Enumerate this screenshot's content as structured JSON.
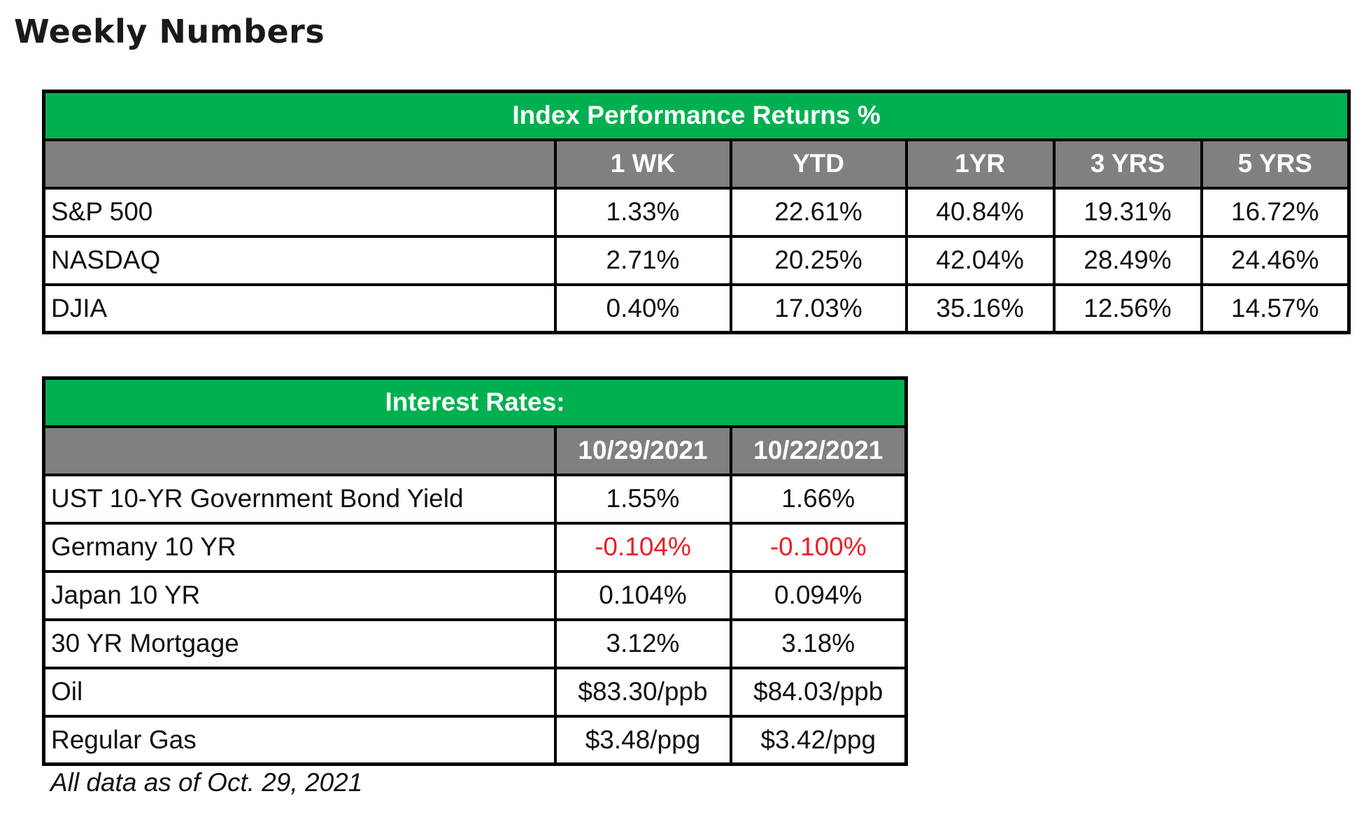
{
  "page": {
    "title": "Weekly Numbers",
    "footnote": "All data as of Oct. 29, 2021"
  },
  "colors": {
    "title_bar": "#00b050",
    "header_bar": "#808080",
    "negative": "#ee1c25",
    "text": "#111111"
  },
  "index_table": {
    "title": "Index Performance Returns %",
    "columns": [
      "",
      "1 WK",
      "YTD",
      "1YR",
      "3 YRS",
      "5 YRS"
    ],
    "rows": [
      {
        "label": "S&P 500",
        "values": [
          "1.33%",
          "22.61%",
          "40.84%",
          "19.31%",
          "16.72%"
        ]
      },
      {
        "label": "NASDAQ",
        "values": [
          "2.71%",
          "20.25%",
          "42.04%",
          "28.49%",
          "24.46%"
        ]
      },
      {
        "label": "DJIA",
        "values": [
          "0.40%",
          "17.03%",
          "35.16%",
          "12.56%",
          "14.57%"
        ]
      }
    ]
  },
  "rates_table": {
    "title": "Interest Rates:",
    "columns": [
      "",
      "10/29/2021",
      "10/22/2021"
    ],
    "rows": [
      {
        "label": "UST 10-YR Government Bond Yield",
        "values": [
          "1.55%",
          "1.66%"
        ],
        "negative": [
          false,
          false
        ]
      },
      {
        "label": "Germany 10 YR",
        "values": [
          "-0.104%",
          "-0.100%"
        ],
        "negative": [
          true,
          true
        ]
      },
      {
        "label": "Japan 10 YR",
        "values": [
          "0.104%",
          "0.094%"
        ],
        "negative": [
          false,
          false
        ]
      },
      {
        "label": "30 YR Mortgage",
        "values": [
          "3.12%",
          "3.18%"
        ],
        "negative": [
          false,
          false
        ]
      },
      {
        "label": "Oil",
        "values": [
          "$83.30/ppb",
          "$84.03/ppb"
        ],
        "negative": [
          false,
          false
        ]
      },
      {
        "label": "Regular Gas",
        "values": [
          "$3.48/ppg",
          "$3.42/ppg"
        ],
        "negative": [
          false,
          false
        ]
      }
    ]
  }
}
